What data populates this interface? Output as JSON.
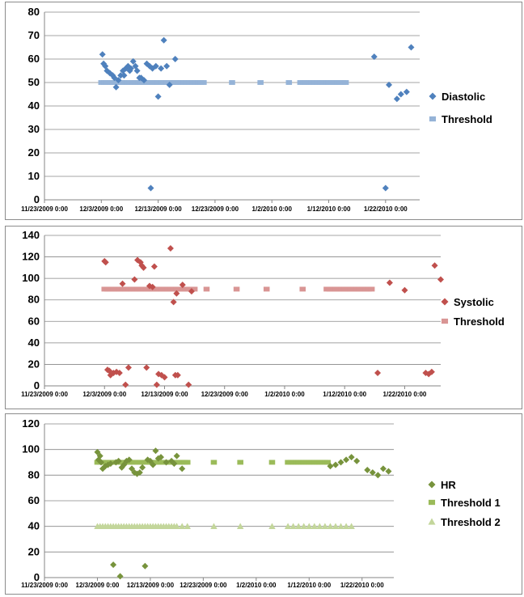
{
  "chart_data": [
    {
      "type": "scatter",
      "ylim": [
        0,
        80
      ],
      "yticks": [
        "0",
        "10",
        "20",
        "30",
        "40",
        "50",
        "60",
        "70",
        "80"
      ],
      "x_tick_labels": [
        "11/23/2009 0:00",
        "12/3/2009 0:00",
        "12/13/2009 0:00",
        "12/23/2009 0:00",
        "1/2/2010 0:00",
        "1/12/2010 0:00",
        "1/22/2010 0:00"
      ],
      "x_unit": "days_from_2009-11-23",
      "xlim": [
        0,
        66
      ],
      "legend_position": "right",
      "grid": true,
      "series": [
        {
          "name": "Diastolic",
          "marker": "diamond",
          "color": "#4f81bd",
          "x": [
            10.2,
            10.4,
            10.7,
            11.0,
            11.5,
            12.0,
            12.3,
            12.6,
            13.0,
            13.4,
            13.8,
            14.0,
            14.3,
            14.7,
            15.0,
            15.2,
            15.6,
            16.0,
            16.3,
            16.7,
            17.0,
            17.5,
            18.0,
            18.5,
            18.7,
            19.0,
            19.6,
            20.0,
            20.5,
            21.0,
            21.5,
            22.0,
            23.0,
            58.0,
            60.0,
            60.6,
            62.0,
            62.7,
            63.7,
            64.5
          ],
          "y": [
            62,
            58,
            57,
            55,
            54,
            53,
            52,
            48,
            51,
            53,
            55,
            53,
            56,
            57,
            55,
            56,
            59,
            57,
            55,
            52,
            52,
            51,
            58,
            57,
            5,
            56,
            57,
            44,
            56,
            68,
            57,
            49,
            60,
            61,
            5,
            49,
            43,
            45,
            46,
            65
          ]
        },
        {
          "name": "Threshold",
          "marker": "square",
          "color": "#95b3d7",
          "x": [
            10,
            10.5,
            11,
            11.5,
            12,
            12.5,
            13,
            13.5,
            14,
            14.5,
            15,
            15.5,
            16,
            16.5,
            17,
            17.5,
            18,
            18.5,
            19,
            19.5,
            20,
            20.5,
            21,
            21.5,
            22,
            22.5,
            23,
            23.5,
            24,
            24.5,
            25,
            25.5,
            26,
            26.5,
            27,
            27.5,
            28,
            33,
            38,
            43,
            45,
            45.5,
            46,
            46.5,
            47,
            47.5,
            48,
            48.5,
            49,
            49.5,
            50,
            50.5,
            51,
            51.5,
            52,
            52.5,
            53
          ],
          "y": [
            50,
            50,
            50,
            50,
            50,
            50,
            50,
            50,
            50,
            50,
            50,
            50,
            50,
            50,
            50,
            50,
            50,
            50,
            50,
            50,
            50,
            50,
            50,
            50,
            50,
            50,
            50,
            50,
            50,
            50,
            50,
            50,
            50,
            50,
            50,
            50,
            50,
            50,
            50,
            50,
            50,
            50,
            50,
            50,
            50,
            50,
            50,
            50,
            50,
            50,
            50,
            50,
            50,
            50,
            50,
            50,
            50
          ]
        }
      ]
    },
    {
      "type": "scatter",
      "ylim": [
        0,
        140
      ],
      "yticks": [
        "0",
        "20",
        "40",
        "60",
        "80",
        "100",
        "120",
        "140"
      ],
      "x_tick_labels": [
        "11/23/2009 0:00",
        "12/3/2009 0:00",
        "12/13/2009 0:00",
        "12/23/2009 0:00",
        "1/2/2010 0:00",
        "1/12/2010 0:00",
        "1/22/2010 0:00"
      ],
      "x_unit": "days_from_2009-11-23",
      "xlim": [
        0,
        66
      ],
      "legend_position": "right",
      "grid": true,
      "series": [
        {
          "name": "Systolic",
          "marker": "diamond",
          "color": "#c0504d",
          "x": [
            10.0,
            10.2,
            10.5,
            10.8,
            11.0,
            11.5,
            12.0,
            12.5,
            13.0,
            13.5,
            14.0,
            15.0,
            15.5,
            16.0,
            16.2,
            16.5,
            17.0,
            17.5,
            18.0,
            18.3,
            18.7,
            19.0,
            19.5,
            20.0,
            21.0,
            21.5,
            21.8,
            22.0,
            22.2,
            23.0,
            24.0,
            24.5,
            55.5,
            57.5,
            60.0,
            63.5,
            64.0,
            64.5,
            65.0,
            66.0
          ],
          "y": [
            116,
            115,
            15,
            14,
            10,
            12,
            13,
            12,
            95,
            1,
            17,
            99,
            117,
            115,
            112,
            110,
            17,
            93,
            92,
            111,
            1,
            11,
            10,
            8,
            128,
            78,
            10,
            86,
            10,
            94,
            1,
            88,
            12,
            96,
            89,
            12,
            11,
            13,
            112,
            99
          ]
        },
        {
          "name": "Threshold",
          "marker": "square",
          "color": "#d99594",
          "x": [
            10,
            10.5,
            11,
            11.5,
            12,
            12.5,
            13,
            13.5,
            14,
            14.5,
            15,
            15.5,
            16,
            16.5,
            17,
            17.5,
            18,
            18.5,
            19,
            19.5,
            20,
            20.5,
            21,
            21.5,
            22,
            22.5,
            23,
            23.5,
            24,
            24.5,
            25,
            27,
            32,
            37,
            43,
            47,
            47.5,
            48,
            48.5,
            49,
            49.5,
            50,
            50.5,
            51,
            51.5,
            52,
            52.5,
            53,
            53.5,
            54,
            54.5
          ],
          "y": [
            90,
            90,
            90,
            90,
            90,
            90,
            90,
            90,
            90,
            90,
            90,
            90,
            90,
            90,
            90,
            90,
            90,
            90,
            90,
            90,
            90,
            90,
            90,
            90,
            90,
            90,
            90,
            90,
            90,
            90,
            90,
            90,
            90,
            90,
            90,
            90,
            90,
            90,
            90,
            90,
            90,
            90,
            90,
            90,
            90,
            90,
            90,
            90,
            90,
            90,
            90
          ]
        }
      ]
    },
    {
      "type": "scatter",
      "ylim": [
        0,
        120
      ],
      "yticks": [
        "0",
        "20",
        "40",
        "60",
        "80",
        "100",
        "120"
      ],
      "x_tick_labels": [
        "11/23/2009 0:00",
        "12/3/2009 0:00",
        "12/13/2009 0:00",
        "12/23/2009 0:00",
        "1/2/2010 0:00",
        "1/12/2010 0:00",
        "1/22/2010 0:00"
      ],
      "x_unit": "days_from_2009-11-23",
      "xlim": [
        0,
        66
      ],
      "legend_position": "right",
      "grid": true,
      "series": [
        {
          "name": "HR",
          "marker": "diamond",
          "color": "#77933c",
          "x": [
            10.0,
            10.2,
            10.5,
            10.7,
            11.0,
            11.5,
            12.0,
            12.5,
            13.0,
            13.5,
            14.0,
            14.3,
            14.6,
            15.0,
            15.5,
            16.0,
            16.5,
            17.0,
            17.5,
            18.0,
            18.5,
            19.0,
            19.5,
            20.0,
            20.5,
            21.0,
            21.5,
            22.0,
            23.0,
            24.0,
            24.5,
            25.0,
            26.0,
            54.0,
            55.0,
            56.0,
            57.0,
            58.0,
            59.0,
            61.0,
            62.0,
            63.0,
            64.0,
            65.0
          ],
          "y": [
            98,
            92,
            95,
            90,
            85,
            87,
            88,
            89,
            10,
            90,
            91,
            1,
            86,
            88,
            91,
            92,
            85,
            82,
            81,
            82,
            86,
            9,
            92,
            91,
            88,
            99,
            93,
            94,
            90,
            91,
            89,
            95,
            85,
            87,
            88,
            90,
            92,
            94,
            91,
            84,
            82,
            80,
            85,
            83
          ]
        },
        {
          "name": "Threshold 1",
          "marker": "square",
          "color": "#9bbb59",
          "x": [
            10,
            10.5,
            11,
            11.5,
            12,
            12.5,
            13,
            13.5,
            14,
            14.5,
            15,
            15.5,
            16,
            16.5,
            17,
            17.5,
            18,
            18.5,
            19,
            19.5,
            20,
            20.5,
            21,
            21.5,
            22,
            22.5,
            23,
            23.5,
            24,
            24.5,
            25,
            25.5,
            26,
            26.5,
            27,
            32,
            37,
            43,
            46,
            46.5,
            47,
            47.5,
            48,
            48.5,
            49,
            49.5,
            50,
            50.5,
            51,
            51.5,
            52,
            52.5,
            53,
            53.5
          ],
          "y": [
            90,
            90,
            90,
            90,
            90,
            90,
            90,
            90,
            90,
            90,
            90,
            90,
            90,
            90,
            90,
            90,
            90,
            90,
            90,
            90,
            90,
            90,
            90,
            90,
            90,
            90,
            90,
            90,
            90,
            90,
            90,
            90,
            90,
            90,
            90,
            90,
            90,
            90,
            90,
            90,
            90,
            90,
            90,
            90,
            90,
            90,
            90,
            90,
            90,
            90,
            90,
            90,
            90,
            90
          ]
        },
        {
          "name": "Threshold 2",
          "marker": "triangle",
          "color": "#c3d69b",
          "x": [
            10,
            10.5,
            11,
            11.5,
            12,
            12.5,
            13,
            13.5,
            14,
            14.5,
            15,
            15.5,
            16,
            16.5,
            17,
            17.5,
            18,
            18.5,
            19,
            19.5,
            20,
            20.5,
            21,
            21.5,
            22,
            22.5,
            23,
            23.5,
            24,
            24.5,
            25,
            26,
            27,
            32,
            37,
            43,
            46,
            47,
            48,
            49,
            50,
            51,
            52,
            53,
            54,
            55,
            56,
            57,
            58
          ],
          "y": [
            40,
            40,
            40,
            40,
            40,
            40,
            40,
            40,
            40,
            40,
            40,
            40,
            40,
            40,
            40,
            40,
            40,
            40,
            40,
            40,
            40,
            40,
            40,
            40,
            40,
            40,
            40,
            40,
            40,
            40,
            40,
            40,
            40,
            40,
            40,
            40,
            40,
            40,
            40,
            40,
            40,
            40,
            40,
            40,
            40,
            40,
            40,
            40,
            40
          ]
        }
      ]
    }
  ]
}
